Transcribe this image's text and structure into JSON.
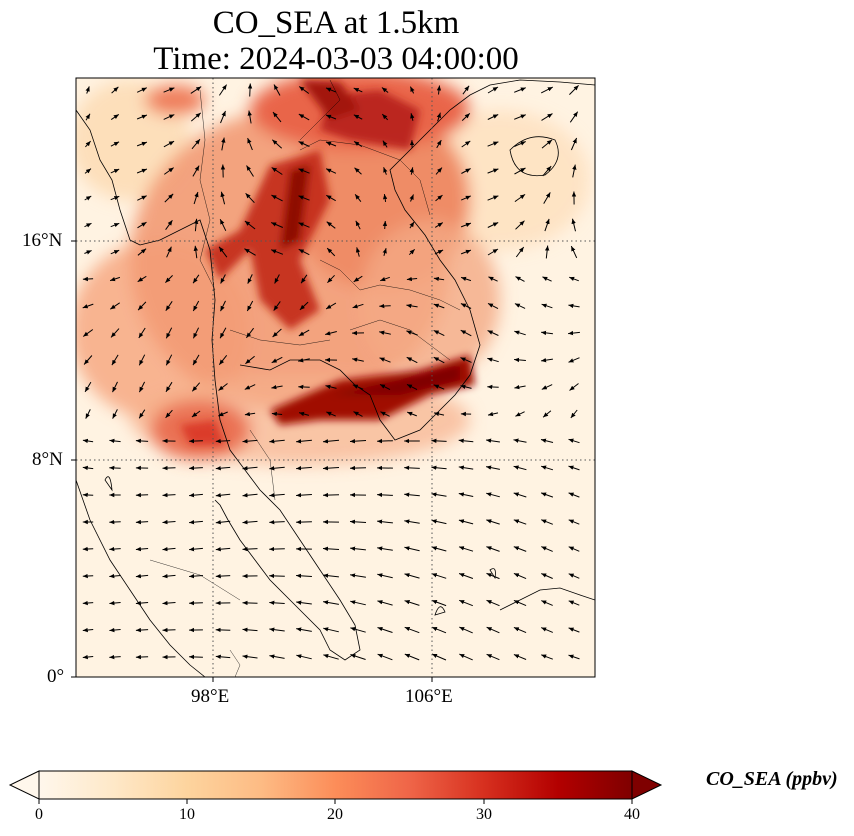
{
  "title": {
    "line1": "CO_SEA at 1.5km",
    "line2": "Time: 2024-03-03 04:00:00"
  },
  "map": {
    "extent": {
      "lon_min": 93,
      "lon_max": 112,
      "lat_min": 0,
      "lat_max": 22
    },
    "gridlines": {
      "lons": [
        98,
        106
      ],
      "lats": [
        8,
        16
      ],
      "style": "dotted"
    },
    "lon_ticks": [
      {
        "value": 98,
        "label": "98°E"
      },
      {
        "value": 106,
        "label": "106°E"
      }
    ],
    "lat_ticks": [
      {
        "value": 16,
        "label": "16°N"
      },
      {
        "value": 8,
        "label": "8°N"
      },
      {
        "value": 0,
        "label": "0°"
      }
    ],
    "field": "CO_SEA",
    "overlay": "wind vectors (quiver)",
    "colormap": "OrRd"
  },
  "colorbar": {
    "label": "CO_SEA (ppbv)",
    "min": 0,
    "max": 40,
    "extend": "both",
    "ticks": [
      "0",
      "10",
      "20",
      "30",
      "40"
    ],
    "colors": [
      "#fff7ec",
      "#fee8c8",
      "#fdd49e",
      "#fdbb84",
      "#fc8d59",
      "#ef6548",
      "#d7301f",
      "#b30000",
      "#7f0000"
    ]
  }
}
